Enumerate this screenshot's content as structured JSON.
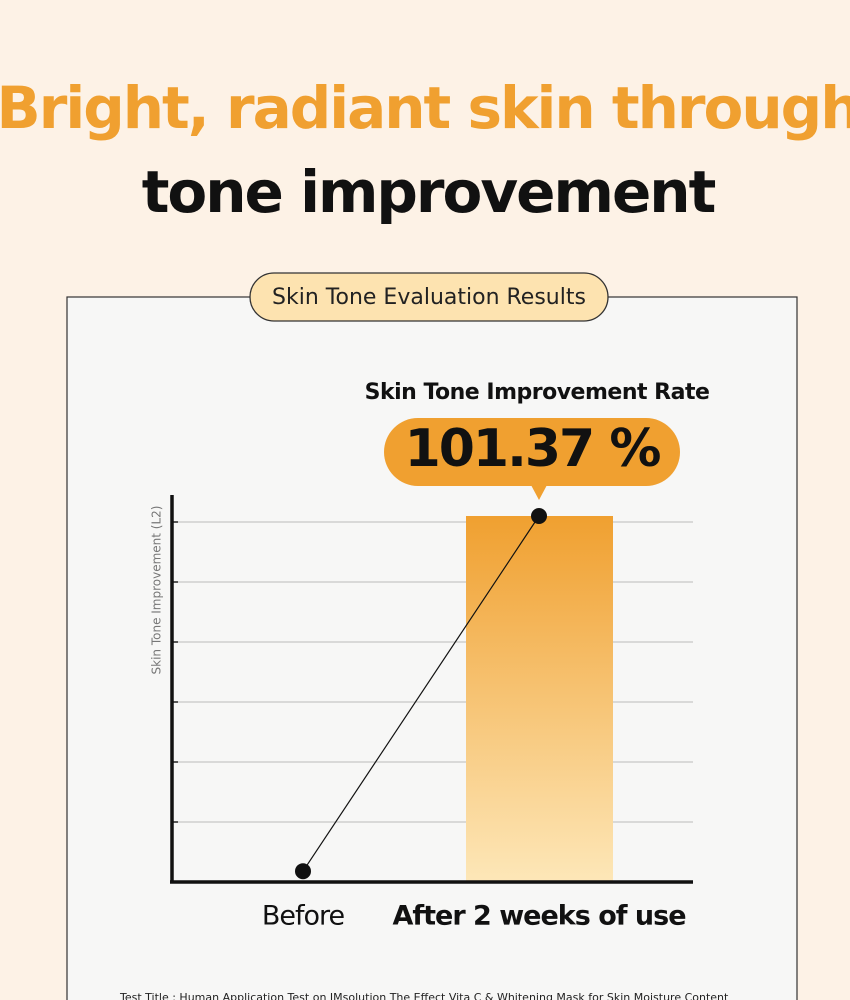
{
  "header": {
    "line1": "Bright, radiant skin through",
    "line2": "tone improvement"
  },
  "badge": "Skin Tone Evaluation Results",
  "chart_data": {
    "type": "bar",
    "y_label": "Skin Tone Improvement (L2)",
    "categories": [
      "Before",
      "After 2 weeks of use"
    ],
    "values": [
      null,
      6.1
    ],
    "line_values": [
      0.18,
      6.1
    ],
    "color": "#f0a030",
    "ylim": [
      0,
      6.45
    ],
    "gridlines": [
      1,
      2,
      3,
      4,
      5,
      6
    ],
    "rate_title": "Skin Tone Improvement Rate",
    "rate": {
      "value": 101.37,
      "label": "101.37 %"
    }
  },
  "footnote": "Test Title : Human Application Test on IMsolution The Effect Vita C & Whitening Mask for Skin Moisture Content"
}
